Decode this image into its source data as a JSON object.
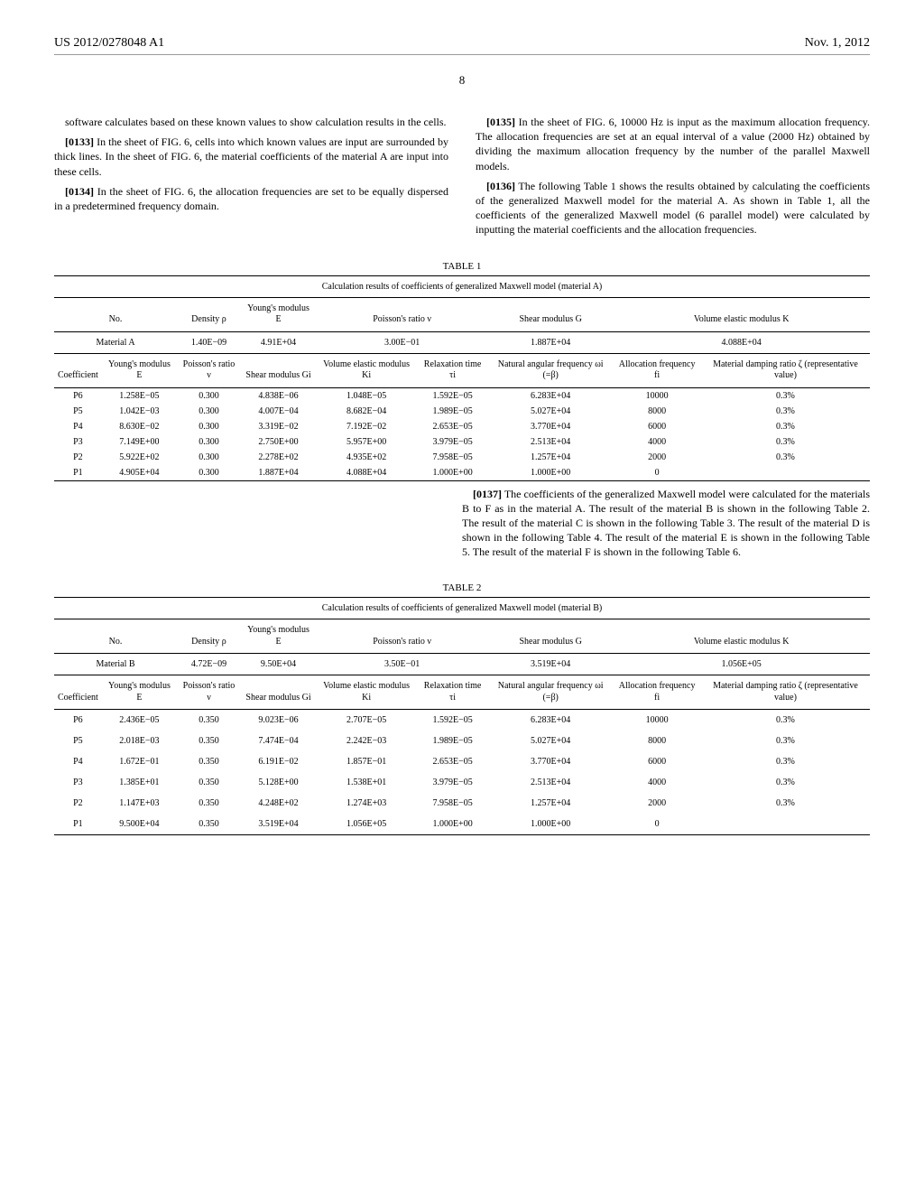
{
  "header": {
    "pub_number": "US 2012/0278048 A1",
    "pub_date": "Nov. 1, 2012"
  },
  "page_number": "8",
  "left_column": {
    "p1": "software calculates based on these known values to show calculation results in the cells.",
    "p2_num": "[0133]",
    "p2": " In the sheet of FIG. 6, cells into which known values are input are surrounded by thick lines. In the sheet of FIG. 6, the material coefficients of the material A are input into these cells.",
    "p3_num": "[0134]",
    "p3": " In the sheet of FIG. 6, the allocation frequencies are set to be equally dispersed in a predetermined frequency domain."
  },
  "right_column": {
    "p1_num": "[0135]",
    "p1": " In the sheet of FIG. 6, 10000 Hz is input as the maximum allocation frequency. The allocation frequencies are set at an equal interval of a value (2000 Hz) obtained by dividing the maximum allocation frequency by the number of the parallel Maxwell models.",
    "p2_num": "[0136]",
    "p2": " The following Table 1 shows the results obtained by calculating the coefficients of the generalized Maxwell model for the material A. As shown in Table 1, all the coefficients of the generalized Maxwell model (6 parallel model) were calculated by inputting the material coefficients and the allocation frequencies."
  },
  "table1": {
    "label": "TABLE 1",
    "caption": "Calculation results of coefficients of generalized Maxwell model (material A)",
    "top_headers": [
      "No.",
      "Density ρ",
      "Young's modulus E",
      "Poisson's ratio ν",
      "Shear modulus G",
      "Volume elastic modulus K"
    ],
    "material_row": [
      "Material A",
      "1.40E−09",
      "4.91E+04",
      "3.00E−01",
      "1.887E+04",
      "4.088E+04"
    ],
    "coef_headers": [
      "Coefficient",
      "Young's modulus E",
      "Poisson's ratio ν",
      "Shear modulus Gi",
      "Volume elastic modulus Ki",
      "Relaxation time τi",
      "Natural angular frequency ωi (=β)",
      "Allocation frequency fi",
      "Material damping ratio ζ (representative value)"
    ],
    "rows": [
      [
        "P6",
        "1.258E−05",
        "0.300",
        "4.838E−06",
        "1.048E−05",
        "1.592E−05",
        "6.283E+04",
        "10000",
        "0.3%"
      ],
      [
        "P5",
        "1.042E−03",
        "0.300",
        "4.007E−04",
        "8.682E−04",
        "1.989E−05",
        "5.027E+04",
        "8000",
        "0.3%"
      ],
      [
        "P4",
        "8.630E−02",
        "0.300",
        "3.319E−02",
        "7.192E−02",
        "2.653E−05",
        "3.770E+04",
        "6000",
        "0.3%"
      ],
      [
        "P3",
        "7.149E+00",
        "0.300",
        "2.750E+00",
        "5.957E+00",
        "3.979E−05",
        "2.513E+04",
        "4000",
        "0.3%"
      ],
      [
        "P2",
        "5.922E+02",
        "0.300",
        "2.278E+02",
        "4.935E+02",
        "7.958E−05",
        "1.257E+04",
        "2000",
        "0.3%"
      ],
      [
        "P1",
        "4.905E+04",
        "0.300",
        "1.887E+04",
        "4.088E+04",
        "1.000E+00",
        "1.000E+00",
        "0",
        ""
      ]
    ]
  },
  "mid_right": {
    "p1_num": "[0137]",
    "p1": " The coefficients of the generalized Maxwell model were calculated for the materials B to F as in the material A. The result of the material B is shown in the following Table 2. The result of the material C is shown in the following Table 3. The result of the material D is shown in the following Table 4. The result of the material E is shown in the following Table 5. The result of the material F is shown in the following Table 6."
  },
  "table2": {
    "label": "TABLE 2",
    "caption": "Calculation results of coefficients of generalized Maxwell model (material B)",
    "top_headers": [
      "No.",
      "Density ρ",
      "Young's modulus E",
      "Poisson's ratio ν",
      "Shear modulus G",
      "Volume elastic modulus K"
    ],
    "material_row": [
      "Material B",
      "4.72E−09",
      "9.50E+04",
      "3.50E−01",
      "3.519E+04",
      "1.056E+05"
    ],
    "coef_headers": [
      "Coefficient",
      "Young's modulus E",
      "Poisson's ratio ν",
      "Shear modulus Gi",
      "Volume elastic modulus Ki",
      "Relaxation time τi",
      "Natural angular frequency ωi (=β)",
      "Allocation frequency fi",
      "Material damping ratio ζ (representative value)"
    ],
    "rows": [
      [
        "P6",
        "2.436E−05",
        "0.350",
        "9.023E−06",
        "2.707E−05",
        "1.592E−05",
        "6.283E+04",
        "10000",
        "0.3%"
      ],
      [
        "P5",
        "2.018E−03",
        "0.350",
        "7.474E−04",
        "2.242E−03",
        "1.989E−05",
        "5.027E+04",
        "8000",
        "0.3%"
      ],
      [
        "P4",
        "1.672E−01",
        "0.350",
        "6.191E−02",
        "1.857E−01",
        "2.653E−05",
        "3.770E+04",
        "6000",
        "0.3%"
      ],
      [
        "P3",
        "1.385E+01",
        "0.350",
        "5.128E+00",
        "1.538E+01",
        "3.979E−05",
        "2.513E+04",
        "4000",
        "0.3%"
      ],
      [
        "P2",
        "1.147E+03",
        "0.350",
        "4.248E+02",
        "1.274E+03",
        "7.958E−05",
        "1.257E+04",
        "2000",
        "0.3%"
      ],
      [
        "P1",
        "9.500E+04",
        "0.350",
        "3.519E+04",
        "1.056E+05",
        "1.000E+00",
        "1.000E+00",
        "0",
        ""
      ]
    ]
  }
}
